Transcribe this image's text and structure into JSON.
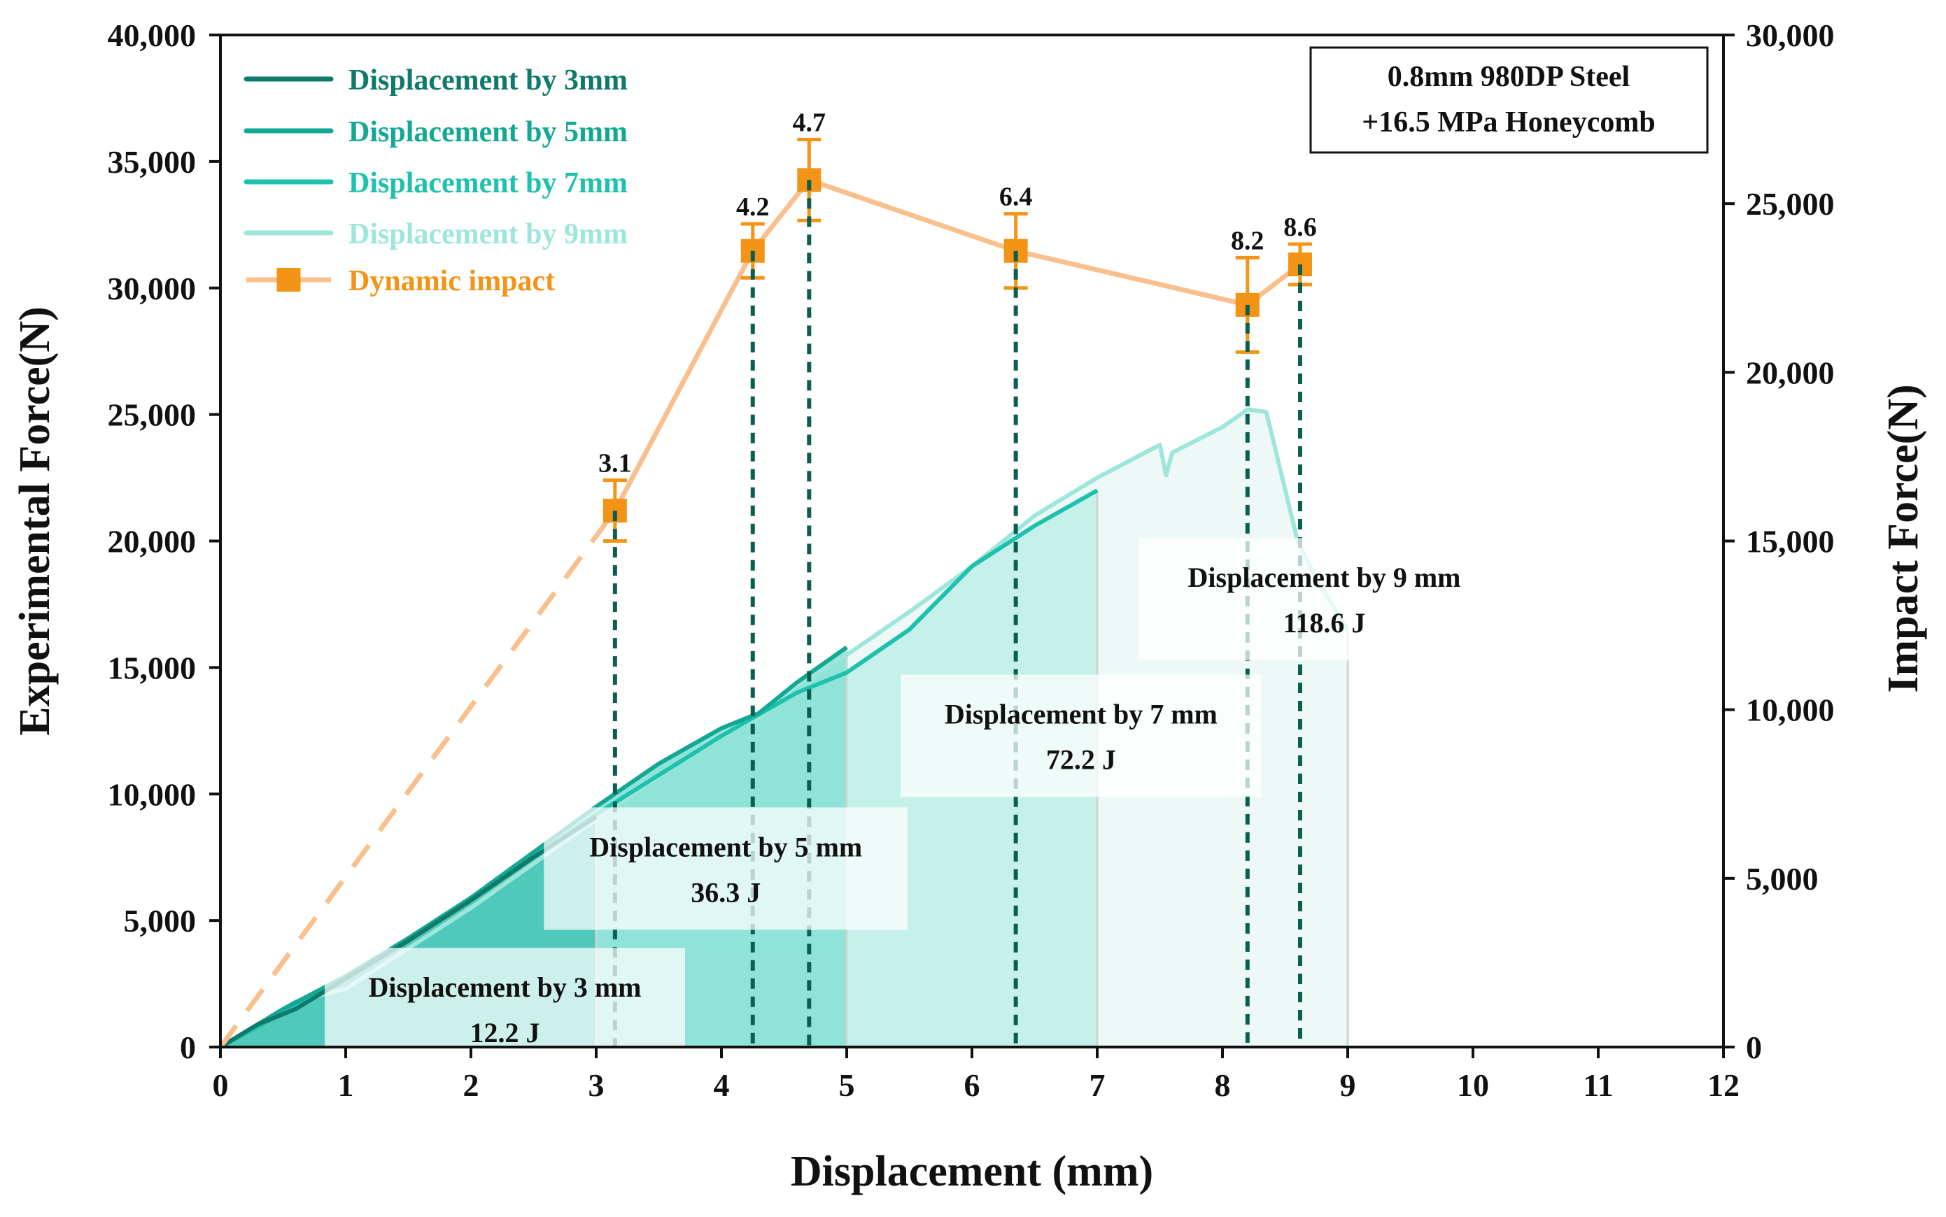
{
  "chart_data": {
    "type": "line",
    "title": "",
    "xlabel": "Displacement (mm)",
    "ylabel_left": "Experimental Force(N)",
    "ylabel_right": "Impact Force(N)",
    "xlim": [
      0,
      12
    ],
    "ylim_left": [
      0,
      40000
    ],
    "ylim_right": [
      0,
      30000
    ],
    "x_ticks": [
      "0",
      "1",
      "2",
      "3",
      "4",
      "5",
      "6",
      "7",
      "8",
      "9",
      "10",
      "11",
      "12"
    ],
    "y_left_ticks": [
      "0",
      "5,000",
      "10,000",
      "15,000",
      "20,000",
      "25,000",
      "30,000",
      "35,000",
      "40,000"
    ],
    "y_right_ticks": [
      "0",
      "5,000",
      "10,000",
      "15,000",
      "20,000",
      "25,000",
      "30,000"
    ],
    "grid": false,
    "info_box": [
      "0.8mm 980DP Steel",
      "+16.5 MPa Honeycomb"
    ],
    "series": [
      {
        "name": "Displacement by 3mm",
        "color": "#0f7a6a",
        "area_color": "#4fc9bb",
        "energy_label": [
          "Displacement by 3 mm",
          "12.2 J"
        ],
        "x": [
          0,
          0.3,
          0.6,
          1.0,
          1.5,
          2.0,
          2.5,
          3.0
        ],
        "y": [
          0,
          900,
          1500,
          2700,
          4200,
          5800,
          7500,
          9100
        ]
      },
      {
        "name": "Displacement by 5mm",
        "color": "#12a894",
        "area_color": "#8fe3d8",
        "energy_label": [
          "Displacement by 5 mm",
          "36.3 J"
        ],
        "x": [
          0,
          0.5,
          1.0,
          1.5,
          2.0,
          2.5,
          3.0,
          3.5,
          4.0,
          4.3,
          4.6,
          5.0
        ],
        "y": [
          0,
          1500,
          2800,
          4300,
          5900,
          7700,
          9500,
          11200,
          12600,
          13200,
          14400,
          15800
        ]
      },
      {
        "name": "Displacement by 7mm",
        "color": "#1ec2ac",
        "area_color": "#c6f1ea",
        "energy_label": [
          "Displacement by 7 mm",
          "72.2 J"
        ],
        "x": [
          0,
          1.0,
          2.0,
          3.0,
          4.0,
          4.6,
          5.0,
          5.5,
          6.0,
          6.5,
          7.0
        ],
        "y": [
          0,
          2700,
          5800,
          9200,
          12300,
          14000,
          14800,
          16500,
          19000,
          20600,
          22000
        ]
      },
      {
        "name": "Displacement by 9mm",
        "color": "#9ee6db",
        "area_color": "#eef9f7",
        "energy_label": [
          "Displacement by 9 mm",
          "118.6 J"
        ],
        "x": [
          0,
          0.6,
          1.0,
          2.0,
          3.0,
          4.0,
          4.3,
          4.6,
          5.0,
          5.5,
          6.0,
          6.5,
          7.0,
          7.5,
          7.55,
          7.6,
          8.0,
          8.2,
          8.35,
          8.6,
          8.75,
          9.0
        ],
        "y": [
          0,
          1800,
          2300,
          5500,
          9000,
          12400,
          13000,
          14300,
          15500,
          17200,
          19000,
          21000,
          22500,
          23800,
          22600,
          23500,
          24500,
          25200,
          25100,
          20000,
          18500,
          16500
        ]
      }
    ],
    "impact_series": {
      "name": "Dynamic impact",
      "color": "#f39416",
      "line_color": "#f9c08e",
      "axis": "right",
      "x": [
        3.15,
        4.25,
        4.7,
        6.35,
        8.2,
        8.62
      ],
      "y": [
        15900,
        23600,
        25700,
        23600,
        22000,
        23200
      ],
      "err": [
        900,
        800,
        1200,
        1100,
        1400,
        600
      ],
      "labels": [
        "3.1",
        "4.2",
        "4.7",
        "6.4",
        "8.2",
        "8.6"
      ],
      "extrapolated_from": [
        0,
        0
      ]
    }
  }
}
